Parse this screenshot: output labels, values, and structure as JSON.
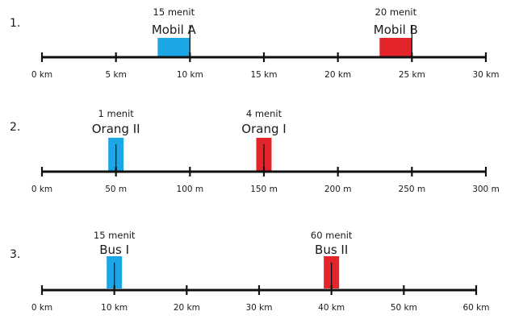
{
  "colors": {
    "blue": "#1ba7e6",
    "red": "#e3242b",
    "line": "#111111"
  },
  "problems": [
    {
      "number": "1.",
      "ticks": [
        "0 km",
        "5 km",
        "10 km",
        "15 km",
        "20 km",
        "25 km",
        "30 km"
      ],
      "markers": [
        {
          "time": "15 menit",
          "name": "Mobil A",
          "color": "blue",
          "position": 10,
          "box_side": "left"
        },
        {
          "time": "20 menit",
          "name": "Mobil B",
          "color": "red",
          "position": 25,
          "box_side": "left"
        }
      ]
    },
    {
      "number": "2.",
      "ticks": [
        "0 km",
        "50 m",
        "100 m",
        "150 m",
        "200 m",
        "250 m",
        "300 m"
      ],
      "markers": [
        {
          "time": "1 menit",
          "name": "Orang II",
          "color": "blue",
          "position": 50,
          "box_side": "center"
        },
        {
          "time": "4 menit",
          "name": "Orang I",
          "color": "red",
          "position": 150,
          "box_side": "center"
        }
      ]
    },
    {
      "number": "3.",
      "ticks": [
        "0 km",
        "10 km",
        "20 km",
        "30 km",
        "40 km",
        "50 km",
        "60 km"
      ],
      "markers": [
        {
          "time": "15 menit",
          "name": "Bus I",
          "color": "blue",
          "position": 10,
          "box_side": "center"
        },
        {
          "time": "60 menit",
          "name": "Bus II",
          "color": "red",
          "position": 40,
          "box_side": "center"
        }
      ]
    }
  ]
}
